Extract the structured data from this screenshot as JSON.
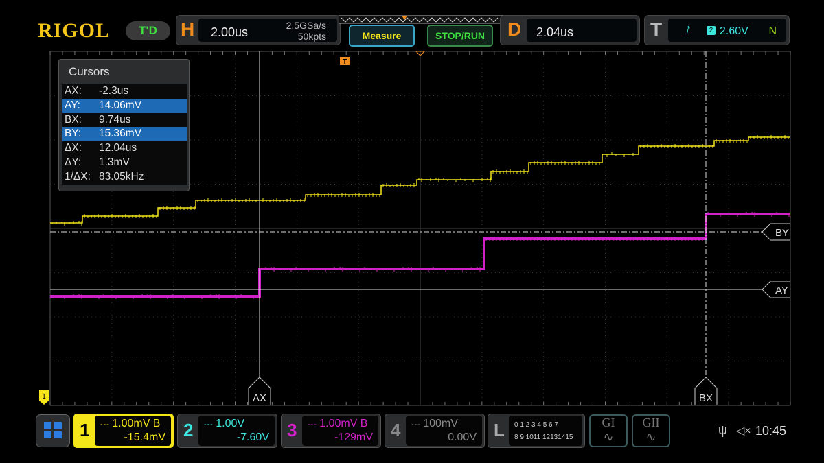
{
  "brand": "RIGOL",
  "mode_badge": "T'D",
  "horizontal": {
    "letter": "H",
    "timebase": "2.00us",
    "sample_rate": "2.5GSa/s",
    "memory_depth": "50kpts"
  },
  "buttons": {
    "measure": "Measure",
    "stop_run": "STOP/RUN"
  },
  "delay": {
    "letter": "D",
    "value": "2.04us"
  },
  "trigger": {
    "letter": "T",
    "source": "2",
    "level": "2.60V",
    "mode": "N"
  },
  "cursors": {
    "title": "Cursors",
    "rows": [
      {
        "k": "AX:",
        "v": "-2.3us",
        "hl": false
      },
      {
        "k": "AY:",
        "v": "14.06mV",
        "hl": true
      },
      {
        "k": "BX:",
        "v": "9.74us",
        "hl": false
      },
      {
        "k": "BY:",
        "v": "15.36mV",
        "hl": true
      },
      {
        "k": "ΔX:",
        "v": "12.04us",
        "hl": false
      },
      {
        "k": "ΔY:",
        "v": "1.3mV",
        "hl": false
      },
      {
        "k": "1/ΔX:",
        "v": "83.05kHz",
        "hl": false
      }
    ]
  },
  "cursor_labels": {
    "ax": "AX",
    "bx": "BX",
    "ay": "AY",
    "by": "BY"
  },
  "trigger_marker": "T",
  "channel_marker": "1",
  "channels": [
    {
      "n": "1",
      "scale": "1.00mV B",
      "offset": "-15.4mV",
      "color": "#f5e61a"
    },
    {
      "n": "2",
      "scale": "1.00V",
      "offset": "-7.60V",
      "color": "#3ee6e0"
    },
    {
      "n": "3",
      "scale": "1.00mV B",
      "offset": "-129mV",
      "color": "#d020c8"
    },
    {
      "n": "4",
      "scale": "100mV",
      "offset": "0.00V",
      "color": "#888888"
    }
  ],
  "logic": {
    "letter": "L",
    "row1": "0 1 2 3  4 5 6 7",
    "row2": "8 9 1011 12131415"
  },
  "generators": [
    "GI",
    "GII"
  ],
  "status": {
    "time": "10:45"
  },
  "colors": {
    "ch1": "#f5e61a",
    "ch3": "#d020c8",
    "accent": "#f08c1e"
  }
}
